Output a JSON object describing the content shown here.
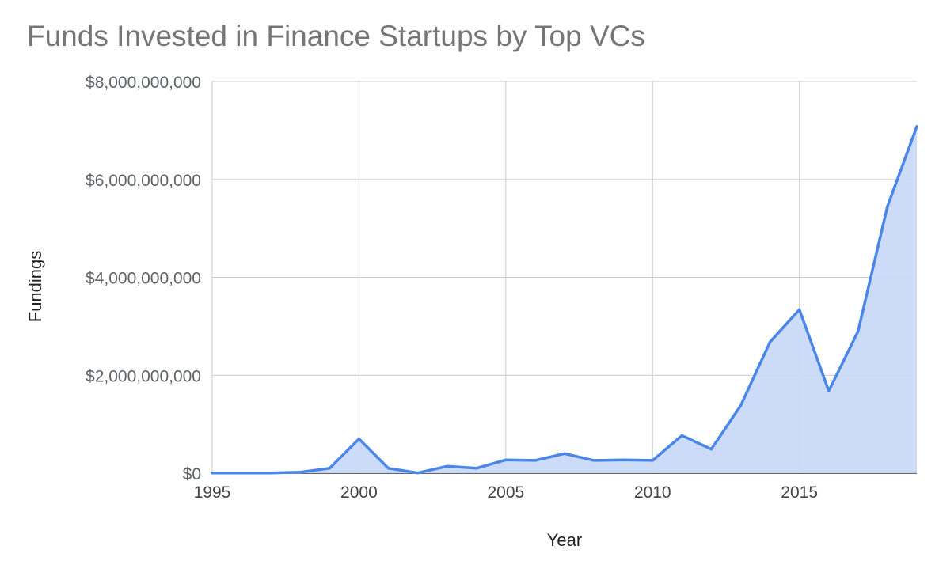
{
  "chart_data": {
    "type": "area",
    "title": "Funds Invested in Finance Startups by Top VCs",
    "xlabel": "Year",
    "ylabel": "Fundings",
    "xlim": [
      1995,
      2019
    ],
    "ylim": [
      0,
      8000000000
    ],
    "x_ticks": [
      "1995",
      "2000",
      "2005",
      "2010",
      "2015"
    ],
    "x_tick_values": [
      1995,
      2000,
      2005,
      2010,
      2015
    ],
    "y_ticks": [
      "$0",
      "$2,000,000,000",
      "$4,000,000,000",
      "$6,000,000,000",
      "$8,000,000,000"
    ],
    "y_tick_values": [
      0,
      2000000000,
      4000000000,
      6000000000,
      8000000000
    ],
    "grid": true,
    "series": [
      {
        "line_color": "#4a86e8",
        "fill_color": "#c9daf8",
        "x": [
          1995,
          1996,
          1997,
          1998,
          1999,
          2000,
          2001,
          2002,
          2003,
          2004,
          2005,
          2006,
          2007,
          2008,
          2009,
          2010,
          2011,
          2012,
          2013,
          2014,
          2015,
          2016,
          2017,
          2018,
          2019
        ],
        "values": [
          5000000,
          3000000,
          5000000,
          20000000,
          100000000,
          700000000,
          100000000,
          5000000,
          140000000,
          100000000,
          270000000,
          260000000,
          400000000,
          260000000,
          270000000,
          260000000,
          770000000,
          490000000,
          1380000000,
          2680000000,
          3340000000,
          1680000000,
          2900000000,
          5450000000,
          7080000000
        ]
      }
    ]
  }
}
